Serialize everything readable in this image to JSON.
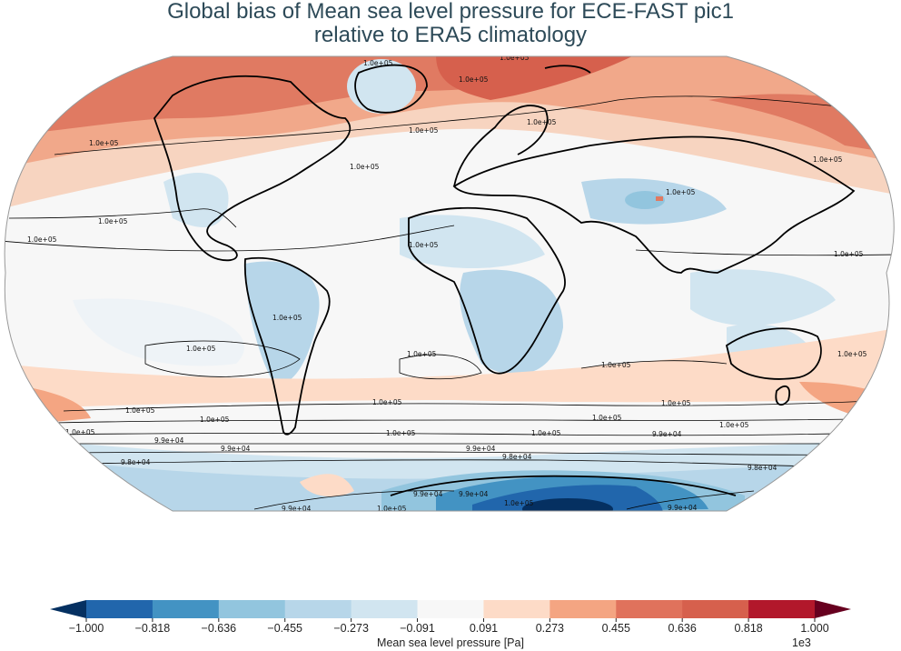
{
  "title": {
    "line1": "Global bias of Mean sea level pressure for ECE-FAST pic1",
    "line2": "relative to ERA5 climatology"
  },
  "colorbar": {
    "label": "Mean sea level pressure [Pa]",
    "exponent": "1e3",
    "ticks": [
      "−1.000",
      "−0.818",
      "−0.636",
      "−0.455",
      "−0.273",
      "−0.091",
      "0.091",
      "0.273",
      "0.455",
      "0.636",
      "0.818",
      "1.000"
    ],
    "colors": [
      "#053061",
      "#2166ac",
      "#4393c3",
      "#92c5de",
      "#b7d6e9",
      "#d1e5f0",
      "#f7f7f7",
      "#fddbc7",
      "#f4a582",
      "#e0725c",
      "#d6604d",
      "#b2182b",
      "#67001f"
    ]
  },
  "contour_labels": {
    "c1": "1.0e+05",
    "c2": "9.9e+04",
    "c3": "9.8e+04"
  }
}
